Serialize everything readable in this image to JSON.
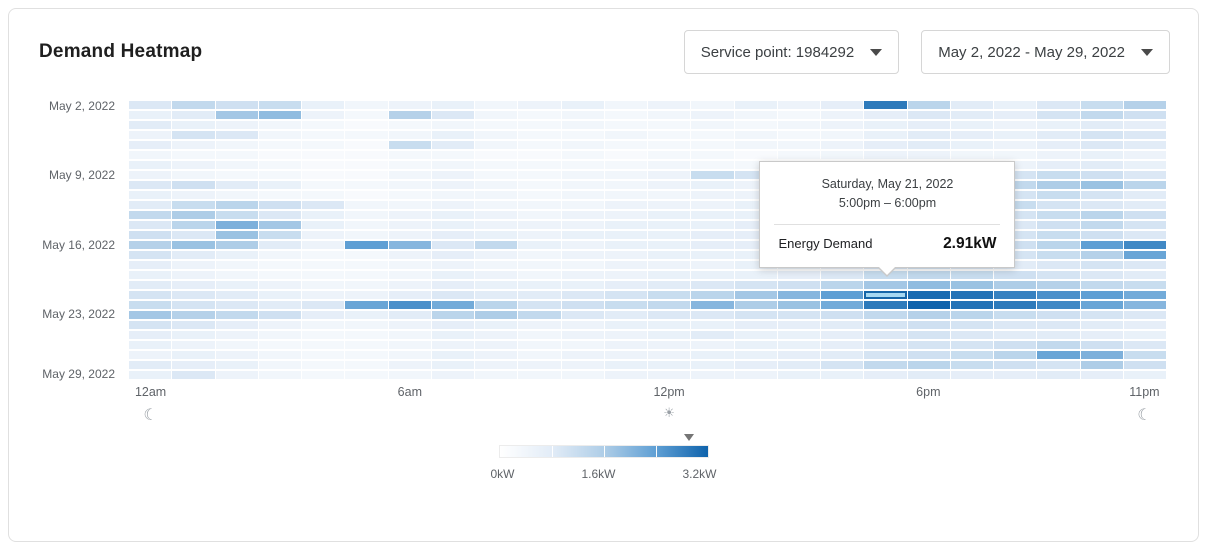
{
  "header": {
    "title": "Demand Heatmap"
  },
  "controls": {
    "service_point": {
      "label": "Service point: 1984292"
    },
    "date_range": {
      "label": "May 2, 2022 - May 29, 2022"
    }
  },
  "tooltip": {
    "date": "Saturday, May 21, 2022",
    "time": "5:00pm – 6:00pm",
    "metric_label": "Energy Demand",
    "value": "2.91kW"
  },
  "legend": {
    "labels": [
      "0kW",
      "1.6kW",
      "3.2kW"
    ],
    "min": 0,
    "max": 3.2,
    "marker_value": 2.91
  },
  "chart_data": {
    "type": "heatmap",
    "title": "Demand Heatmap",
    "value_unit": "kW",
    "value_range": [
      0,
      3.2
    ],
    "days": 28,
    "hours": 24,
    "y_ticks": [
      {
        "label": "May 2, 2022",
        "row": 0
      },
      {
        "label": "May 9, 2022",
        "row": 7
      },
      {
        "label": "May 16, 2022",
        "row": 14
      },
      {
        "label": "May 23, 2022",
        "row": 21
      },
      {
        "label": "May 29, 2022",
        "row": 27
      }
    ],
    "x_ticks": [
      {
        "label": "12am",
        "hour": 0
      },
      {
        "label": "6am",
        "hour": 6
      },
      {
        "label": "12pm",
        "hour": 12
      },
      {
        "label": "6pm",
        "hour": 18
      },
      {
        "label": "11pm",
        "hour": 23
      }
    ],
    "x_icons": [
      {
        "name": "moon-icon",
        "glyph": "☾",
        "kind": "moon",
        "hour": 0
      },
      {
        "name": "sun-icon",
        "glyph": "☀",
        "kind": "sun",
        "hour": 12
      },
      {
        "name": "moon-icon",
        "glyph": "☾",
        "kind": "moon",
        "hour": 23
      }
    ],
    "color_scale": {
      "stops": [
        [
          0,
          "#ffffff"
        ],
        [
          0.8,
          "#e2ecf7"
        ],
        [
          1.6,
          "#aecde7"
        ],
        [
          2.4,
          "#5f9fd4"
        ],
        [
          3.2,
          "#0f63ac"
        ]
      ]
    },
    "highlight": {
      "row": 19,
      "col": 17,
      "value": 2.91,
      "fill": "#a6d8f2",
      "border": "#1565a8"
    },
    "values": [
      [
        0.9,
        1.3,
        1.1,
        1.2,
        0.6,
        0.4,
        0.5,
        0.6,
        0.4,
        0.5,
        0.6,
        0.4,
        0.5,
        0.4,
        0.6,
        0.5,
        0.7,
        2.9,
        1.4,
        0.8,
        0.6,
        0.9,
        1.2,
        1.5
      ],
      [
        0.6,
        0.8,
        1.7,
        1.9,
        0.5,
        0.3,
        1.5,
        0.9,
        0.4,
        0.3,
        0.4,
        0.3,
        0.4,
        0.5,
        0.4,
        0.3,
        0.5,
        0.7,
        0.9,
        0.8,
        0.7,
        1.0,
        1.3,
        1.1
      ],
      [
        0.8,
        0.6,
        0.5,
        0.4,
        0.3,
        0.2,
        0.3,
        0.4,
        0.3,
        0.3,
        0.4,
        0.3,
        0.3,
        0.4,
        0.3,
        0.4,
        0.5,
        0.6,
        0.7,
        0.6,
        0.5,
        0.6,
        0.8,
        0.7
      ],
      [
        0.5,
        1.0,
        0.9,
        0.4,
        0.3,
        0.3,
        0.4,
        0.6,
        0.4,
        0.3,
        0.3,
        0.4,
        0.3,
        0.3,
        0.4,
        0.3,
        0.4,
        0.6,
        0.8,
        0.7,
        0.6,
        0.8,
        1.0,
        0.9
      ],
      [
        0.7,
        0.5,
        0.4,
        0.3,
        0.3,
        0.2,
        1.2,
        0.8,
        0.4,
        0.3,
        0.4,
        0.3,
        0.3,
        0.3,
        0.4,
        0.4,
        0.5,
        0.7,
        0.8,
        0.6,
        0.5,
        0.7,
        0.9,
        0.8
      ],
      [
        0.4,
        0.3,
        0.3,
        0.2,
        0.2,
        0.2,
        0.3,
        0.3,
        0.2,
        0.2,
        0.3,
        0.2,
        0.3,
        0.3,
        0.2,
        0.3,
        0.4,
        0.5,
        0.5,
        0.4,
        0.4,
        0.5,
        0.6,
        0.5
      ],
      [
        0.6,
        0.5,
        0.4,
        0.3,
        0.2,
        0.2,
        0.3,
        0.4,
        0.3,
        0.3,
        0.3,
        0.3,
        0.4,
        0.3,
        0.3,
        0.4,
        0.5,
        0.6,
        0.7,
        0.6,
        0.5,
        0.7,
        0.8,
        0.6
      ],
      [
        0.5,
        0.4,
        0.3,
        0.3,
        0.2,
        0.2,
        0.4,
        0.5,
        0.3,
        0.3,
        0.4,
        0.4,
        0.5,
        1.2,
        1.0,
        0.5,
        0.6,
        0.8,
        0.9,
        0.8,
        1.0,
        1.2,
        1.1,
        0.9
      ],
      [
        0.9,
        1.1,
        0.8,
        0.6,
        0.3,
        0.3,
        0.4,
        0.5,
        0.4,
        0.3,
        0.4,
        0.4,
        0.5,
        0.6,
        0.5,
        0.6,
        0.7,
        0.9,
        1.0,
        1.1,
        1.3,
        1.6,
        1.8,
        1.4
      ],
      [
        0.6,
        0.5,
        0.4,
        0.3,
        0.3,
        0.2,
        0.3,
        0.4,
        0.4,
        0.3,
        0.4,
        0.4,
        0.4,
        0.5,
        0.5,
        0.5,
        0.6,
        0.8,
        0.9,
        0.9,
        1.0,
        1.2,
        1.0,
        0.8
      ],
      [
        0.8,
        1.2,
        1.4,
        1.1,
        0.9,
        0.4,
        0.4,
        0.5,
        0.4,
        0.4,
        0.4,
        0.5,
        0.5,
        0.5,
        0.6,
        0.6,
        0.7,
        0.9,
        1.0,
        1.1,
        1.2,
        1.0,
        0.9,
        0.8
      ],
      [
        1.3,
        1.6,
        1.2,
        0.9,
        0.6,
        0.4,
        0.5,
        0.6,
        0.5,
        0.4,
        0.5,
        0.5,
        0.6,
        0.6,
        0.6,
        0.7,
        0.8,
        1.0,
        1.2,
        1.1,
        1.0,
        1.2,
        1.4,
        1.1
      ],
      [
        0.9,
        1.4,
        2.1,
        1.7,
        0.6,
        0.4,
        0.5,
        0.6,
        0.5,
        0.5,
        0.5,
        0.6,
        0.6,
        0.6,
        0.7,
        0.7,
        0.8,
        1.0,
        1.1,
        1.0,
        0.9,
        1.1,
        1.3,
        1.0
      ],
      [
        1.1,
        0.9,
        1.8,
        1.2,
        0.5,
        0.4,
        0.5,
        0.7,
        0.6,
        0.5,
        0.6,
        0.6,
        0.6,
        0.7,
        0.7,
        0.7,
        0.9,
        1.1,
        1.2,
        1.1,
        1.0,
        1.2,
        1.1,
        0.9
      ],
      [
        1.5,
        1.8,
        1.6,
        0.8,
        0.5,
        2.4,
        2.0,
        0.9,
        1.3,
        0.6,
        0.5,
        0.6,
        0.6,
        0.7,
        0.7,
        0.8,
        0.9,
        1.2,
        1.3,
        1.2,
        1.1,
        1.4,
        2.4,
        2.7
      ],
      [
        1.0,
        0.8,
        0.6,
        0.4,
        0.3,
        0.3,
        0.5,
        0.7,
        0.5,
        0.4,
        0.5,
        0.5,
        0.6,
        0.6,
        0.6,
        0.7,
        0.8,
        1.0,
        1.1,
        1.0,
        1.0,
        1.2,
        1.5,
        2.3
      ],
      [
        0.7,
        0.5,
        0.4,
        0.3,
        0.3,
        0.3,
        0.4,
        0.5,
        0.4,
        0.4,
        0.4,
        0.5,
        0.5,
        0.5,
        0.6,
        0.6,
        0.7,
        0.9,
        1.0,
        0.9,
        0.8,
        0.9,
        1.0,
        0.9
      ],
      [
        0.6,
        0.5,
        0.4,
        0.3,
        0.3,
        0.3,
        0.4,
        0.6,
        0.5,
        0.4,
        0.5,
        0.5,
        0.6,
        0.6,
        0.6,
        0.7,
        0.9,
        1.2,
        1.3,
        1.2,
        1.1,
        1.0,
        0.9,
        0.8
      ],
      [
        0.8,
        0.7,
        0.6,
        0.5,
        0.4,
        0.4,
        0.5,
        0.7,
        0.6,
        0.6,
        0.6,
        0.7,
        0.8,
        0.9,
        1.0,
        1.1,
        1.4,
        1.7,
        1.9,
        1.8,
        1.6,
        1.5,
        1.3,
        1.2
      ],
      [
        1.0,
        0.9,
        0.8,
        0.6,
        0.5,
        0.5,
        0.7,
        0.9,
        0.8,
        0.8,
        0.9,
        1.0,
        1.2,
        1.4,
        1.7,
        2.0,
        2.4,
        2.91,
        3.1,
        3.0,
        2.8,
        2.6,
        2.4,
        2.2
      ],
      [
        1.2,
        1.0,
        0.9,
        0.8,
        0.9,
        2.3,
        2.6,
        2.2,
        1.4,
        1.0,
        1.1,
        1.2,
        1.3,
        2.0,
        1.6,
        1.8,
        2.2,
        2.9,
        3.2,
        3.0,
        2.9,
        2.7,
        2.3,
        2.0
      ],
      [
        1.7,
        1.5,
        1.3,
        1.1,
        0.7,
        0.6,
        0.8,
        1.4,
        1.6,
        1.3,
        0.9,
        0.8,
        0.9,
        0.9,
        1.0,
        1.0,
        1.1,
        1.3,
        1.5,
        1.4,
        1.2,
        1.1,
        1.0,
        0.9
      ],
      [
        1.0,
        0.9,
        0.7,
        0.5,
        0.4,
        0.4,
        0.5,
        0.7,
        0.6,
        0.5,
        0.5,
        0.6,
        0.6,
        0.6,
        0.7,
        0.7,
        0.8,
        1.0,
        1.1,
        1.0,
        0.9,
        0.9,
        0.8,
        0.7
      ],
      [
        0.7,
        0.6,
        0.5,
        0.4,
        0.3,
        0.3,
        0.4,
        0.6,
        0.5,
        0.4,
        0.5,
        0.5,
        0.6,
        0.8,
        0.6,
        0.6,
        0.7,
        0.9,
        1.0,
        0.9,
        0.8,
        0.8,
        0.7,
        0.6
      ],
      [
        0.6,
        0.5,
        0.4,
        0.3,
        0.3,
        0.3,
        0.4,
        0.5,
        0.5,
        0.4,
        0.4,
        0.5,
        0.5,
        0.5,
        0.6,
        0.6,
        0.7,
        0.9,
        1.0,
        1.0,
        1.1,
        1.3,
        1.1,
        0.9
      ],
      [
        0.5,
        0.6,
        0.5,
        0.4,
        0.3,
        0.3,
        0.4,
        0.6,
        0.5,
        0.4,
        0.5,
        0.5,
        0.5,
        0.6,
        0.6,
        0.7,
        0.8,
        1.0,
        1.1,
        1.2,
        1.4,
        2.3,
        2.1,
        1.2
      ],
      [
        0.8,
        0.7,
        0.6,
        0.4,
        0.3,
        0.3,
        0.5,
        0.6,
        0.5,
        0.5,
        0.5,
        0.6,
        0.6,
        0.6,
        0.7,
        0.8,
        1.0,
        1.3,
        1.4,
        1.2,
        1.1,
        1.0,
        1.6,
        1.1
      ],
      [
        0.6,
        0.9,
        0.5,
        0.4,
        0.3,
        0.3,
        0.4,
        0.5,
        0.4,
        0.4,
        0.4,
        0.5,
        0.5,
        0.5,
        0.5,
        0.6,
        0.6,
        0.7,
        0.8,
        0.7,
        0.7,
        0.8,
        0.7,
        0.6
      ]
    ]
  }
}
